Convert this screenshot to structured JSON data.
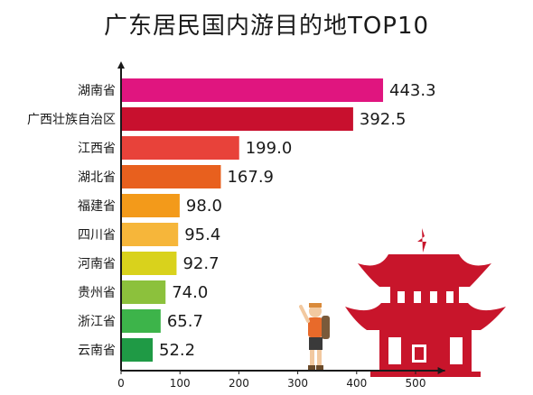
{
  "chart_data": {
    "type": "bar",
    "orientation": "horizontal",
    "title": "广东居民国内游目的地TOP10",
    "categories": [
      "湖南省",
      "广西壮族自治区",
      "江西省",
      "湖北省",
      "福建省",
      "四川省",
      "河南省",
      "贵州省",
      "浙江省",
      "云南省"
    ],
    "values": [
      443.3,
      392.5,
      199.0,
      167.9,
      98.0,
      95.4,
      92.7,
      74.0,
      65.7,
      52.2
    ],
    "value_labels": [
      "443.3",
      "392.5",
      "199.0",
      "167.9",
      "98.0",
      "95.4",
      "92.7",
      "74.0",
      "65.7",
      "52.2"
    ],
    "bar_colors": [
      "#e0157f",
      "#c8102e",
      "#e8423a",
      "#e8601e",
      "#f39a1a",
      "#f6b63a",
      "#d9d21c",
      "#8cc13c",
      "#3db44a",
      "#1f9a45"
    ],
    "xlim": [
      0,
      550
    ],
    "xticks": [
      0,
      100,
      200,
      300,
      400,
      500
    ],
    "grid": false,
    "xlabel": "",
    "ylabel": "",
    "illustration_colors": {
      "pagoda": "#c8152b",
      "hiker_shirt": "#e86a2a"
    }
  }
}
